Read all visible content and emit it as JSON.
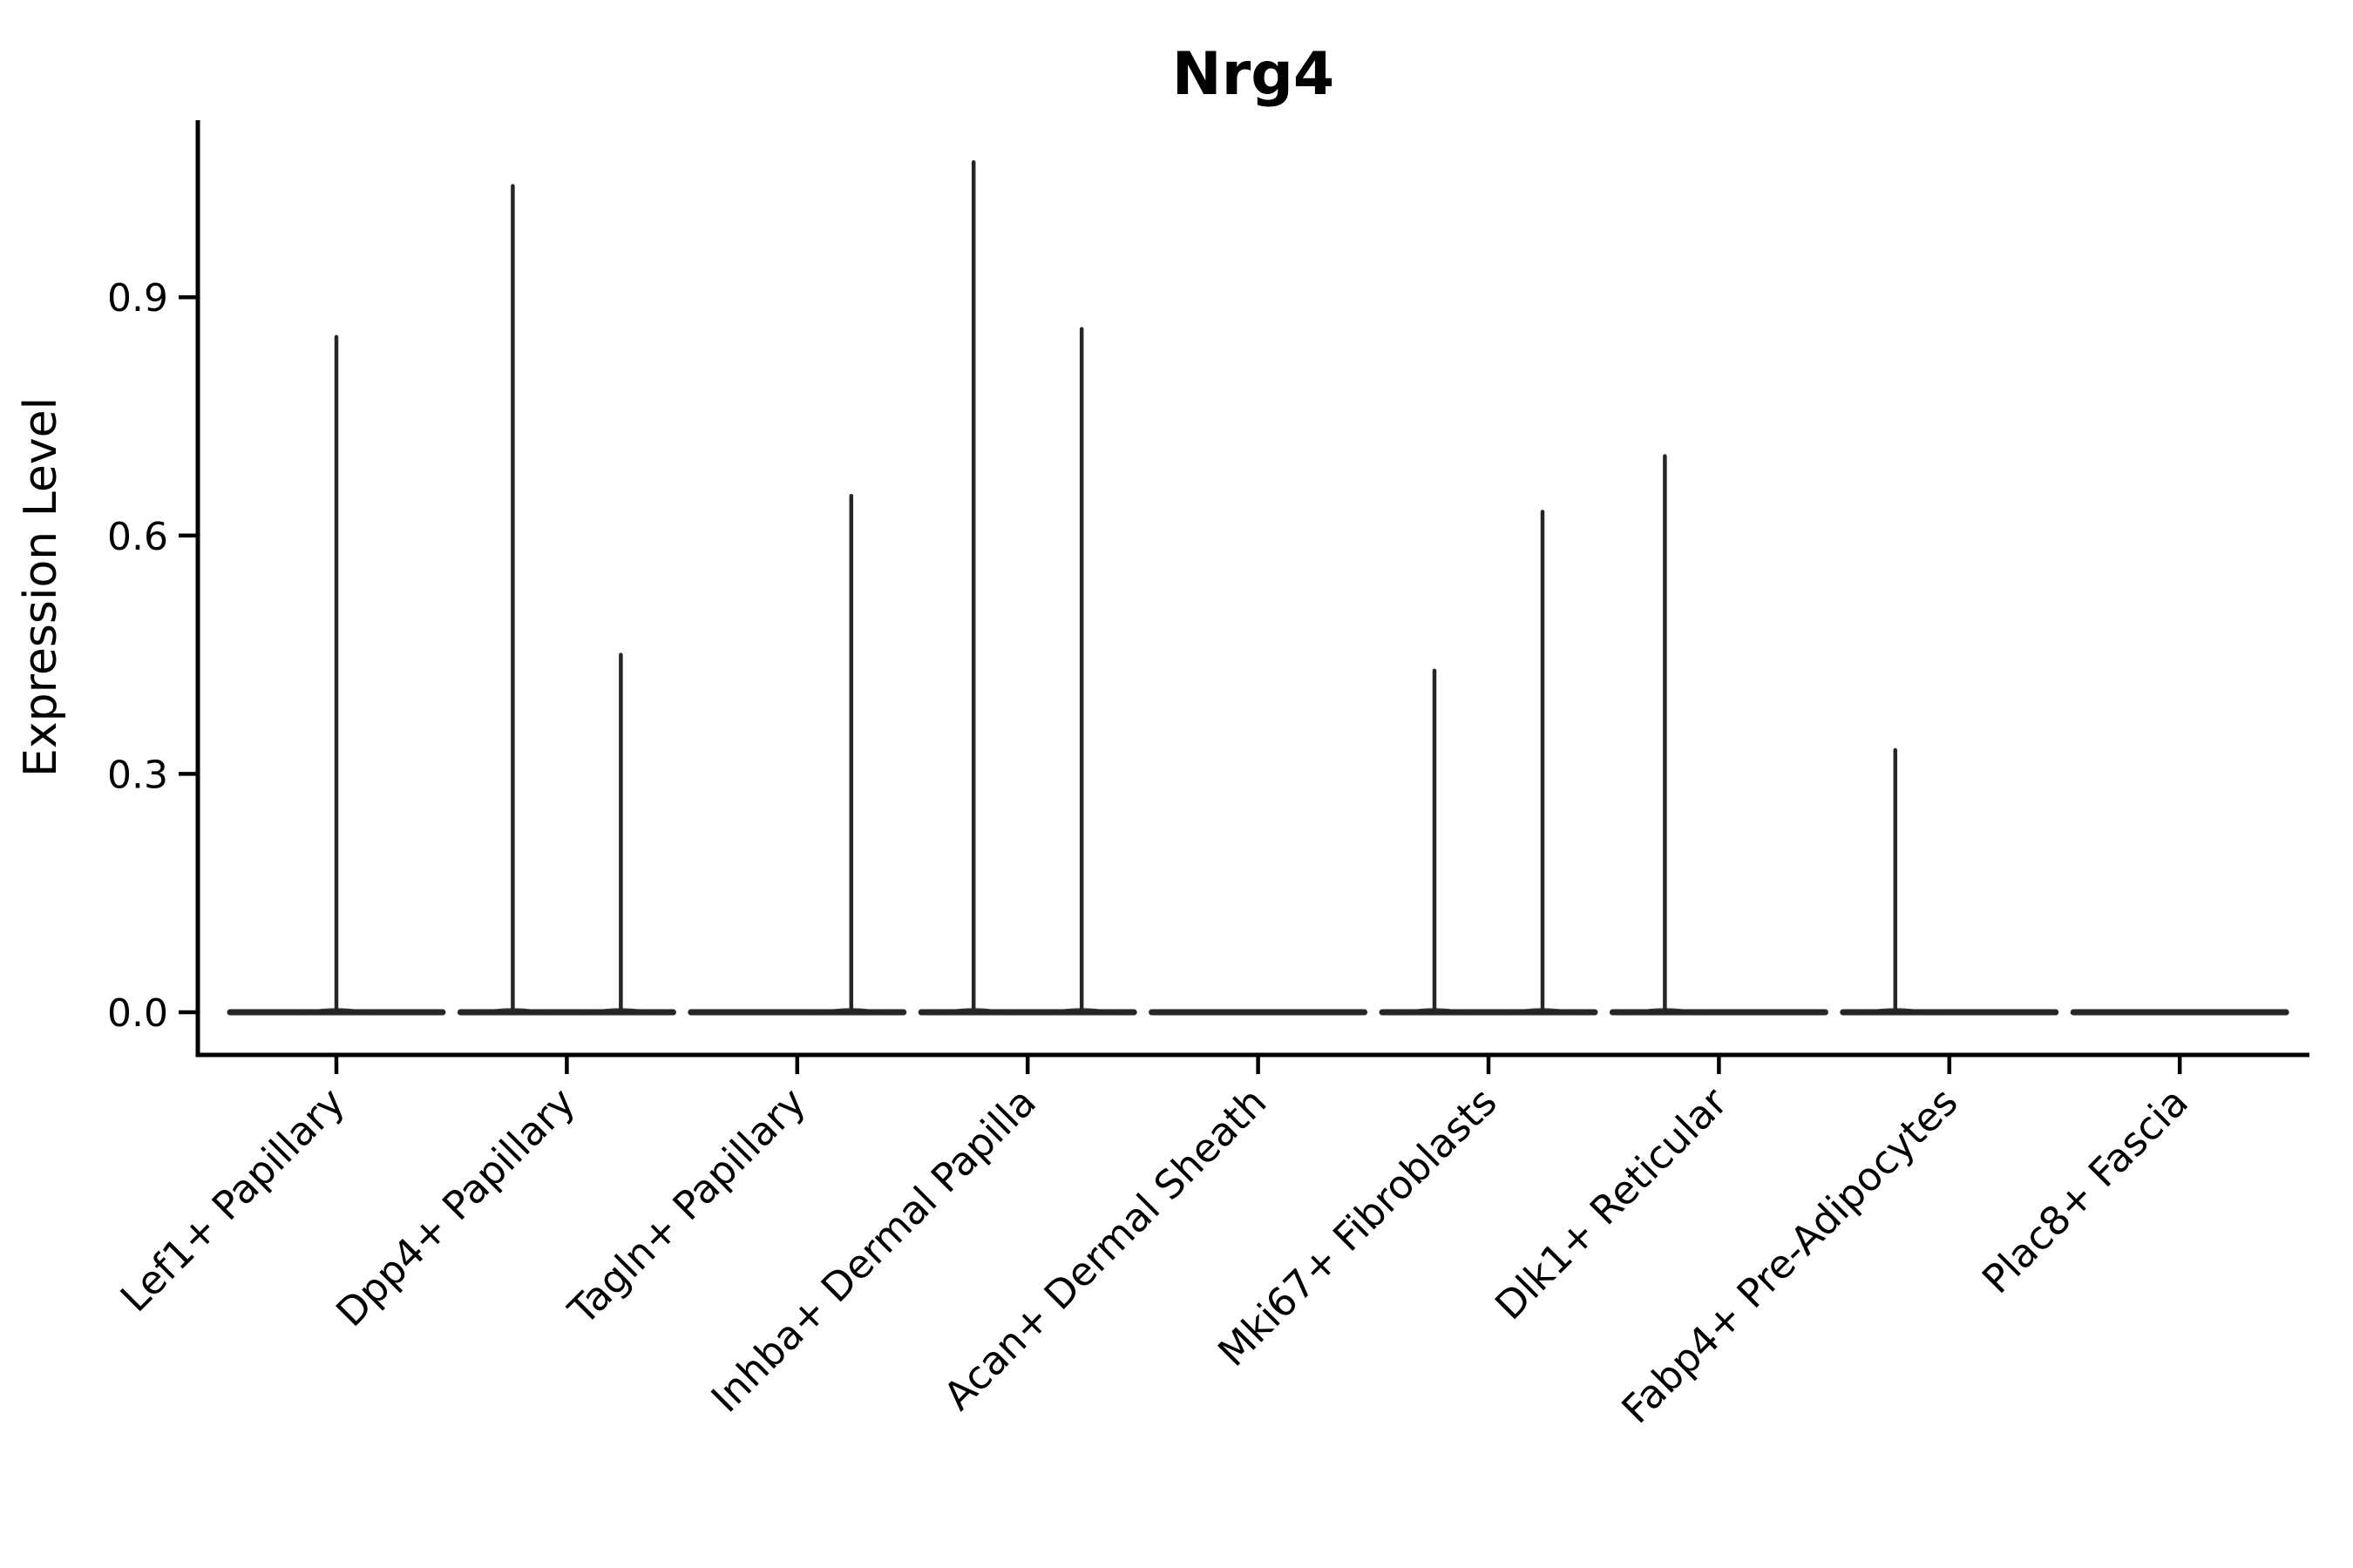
{
  "title": "Nrg4",
  "chart_data": {
    "type": "violin",
    "title": "Nrg4",
    "ylabel": "Expression Level",
    "xlabel": "",
    "grid": false,
    "legend_position": "none",
    "ylim": [
      -0.05,
      1.12
    ],
    "yticks": [
      0.0,
      0.3,
      0.6,
      0.9
    ],
    "ytick_labels": [
      "0.0",
      "0.3",
      "0.6",
      "0.9"
    ],
    "categories": [
      "Lef1+ Papillary",
      "Dpp4+ Papillary",
      "Tagln+ Papillary",
      "Inhba+ Dermal Papilla",
      "Acan+ Dermal Sheath",
      "Mki67+ Fibroblasts",
      "Dlk1+ Reticular",
      "Fabp4+ Pre-Adipocytes",
      "Plac8+ Fascia"
    ],
    "violins": [
      {
        "category": "Lef1+ Papillary",
        "baseline_value": 0.0,
        "spikes": [
          {
            "position": "center",
            "max": 0.85
          }
        ]
      },
      {
        "category": "Dpp4+ Papillary",
        "baseline_value": 0.0,
        "spikes": [
          {
            "position": "left",
            "max": 1.04
          },
          {
            "position": "right",
            "max": 0.45
          }
        ]
      },
      {
        "category": "Tagln+ Papillary",
        "baseline_value": 0.0,
        "spikes": [
          {
            "position": "right",
            "max": 0.65
          }
        ]
      },
      {
        "category": "Inhba+ Dermal Papilla",
        "baseline_value": 0.0,
        "spikes": [
          {
            "position": "left",
            "max": 1.07
          },
          {
            "position": "right",
            "max": 0.86
          }
        ]
      },
      {
        "category": "Acan+ Dermal Sheath",
        "baseline_value": 0.0,
        "spikes": []
      },
      {
        "category": "Mki67+ Fibroblasts",
        "baseline_value": 0.0,
        "spikes": [
          {
            "position": "left",
            "max": 0.43
          },
          {
            "position": "right",
            "max": 0.63
          }
        ]
      },
      {
        "category": "Dlk1+ Reticular",
        "baseline_value": 0.0,
        "spikes": [
          {
            "position": "left",
            "max": 0.7
          }
        ]
      },
      {
        "category": "Fabp4+ Pre-Adipocytes",
        "baseline_value": 0.0,
        "spikes": [
          {
            "position": "left",
            "max": 0.33
          }
        ]
      },
      {
        "category": "Plac8+ Fascia",
        "baseline_value": 0.0,
        "spikes": []
      }
    ],
    "colors": {
      "violin_stroke": "#262626",
      "axis": "#000000",
      "background": "#ffffff"
    }
  }
}
